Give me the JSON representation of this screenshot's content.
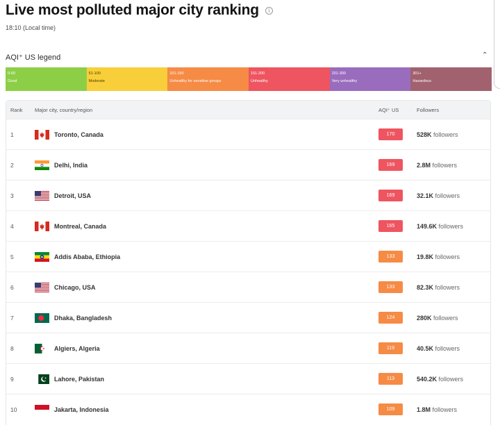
{
  "header": {
    "title": "Live most polluted major city ranking",
    "local_time": "18:10 (Local time)"
  },
  "legend": {
    "title": "AQI⁺ US legend",
    "segments": [
      {
        "range": "0-50",
        "label": "Good",
        "color": "#8ccf47"
      },
      {
        "range": "51-100",
        "label": "Moderate",
        "color": "#f8cf3a"
      },
      {
        "range": "101-150",
        "label": "Unhealthy for sensitive groups",
        "color": "#f58b45"
      },
      {
        "range": "151-200",
        "label": "Unhealthy",
        "color": "#ee5560"
      },
      {
        "range": "201-300",
        "label": "Very unhealthy",
        "color": "#9a6cbd"
      },
      {
        "range": "301+",
        "label": "Hazardous",
        "color": "#a1616e"
      }
    ]
  },
  "table": {
    "headers": {
      "rank": "Rank",
      "city": "Major city, country/region",
      "aqi": "AQI⁺ US",
      "followers": "Followers"
    },
    "rows": [
      {
        "rank": "1",
        "city": "Toronto, Canada",
        "flag": "canada-flag-icon",
        "aqi": "170",
        "aqi_color": "#ee5560",
        "followers_count": "528K",
        "followers_suffix": " followers"
      },
      {
        "rank": "2",
        "city": "Delhi, India",
        "flag": "india-flag-icon",
        "aqi": "169",
        "aqi_color": "#ee5560",
        "followers_count": "2.8M",
        "followers_suffix": " followers"
      },
      {
        "rank": "3",
        "city": "Detroit, USA",
        "flag": "usa-flag-icon",
        "aqi": "169",
        "aqi_color": "#ee5560",
        "followers_count": "32.1K",
        "followers_suffix": " followers"
      },
      {
        "rank": "4",
        "city": "Montreal, Canada",
        "flag": "canada-flag-icon",
        "aqi": "165",
        "aqi_color": "#ee5560",
        "followers_count": "149.6K",
        "followers_suffix": " followers"
      },
      {
        "rank": "5",
        "city": "Addis Ababa, Ethiopia",
        "flag": "ethiopia-flag-icon",
        "aqi": "133",
        "aqi_color": "#f58b45",
        "followers_count": "19.8K",
        "followers_suffix": " followers"
      },
      {
        "rank": "6",
        "city": "Chicago, USA",
        "flag": "usa-flag-icon",
        "aqi": "133",
        "aqi_color": "#f58b45",
        "followers_count": "82.3K",
        "followers_suffix": " followers"
      },
      {
        "rank": "7",
        "city": "Dhaka, Bangladesh",
        "flag": "bangladesh-flag-icon",
        "aqi": "124",
        "aqi_color": "#f58b45",
        "followers_count": "280K",
        "followers_suffix": " followers"
      },
      {
        "rank": "8",
        "city": "Algiers, Algeria",
        "flag": "algeria-flag-icon",
        "aqi": "119",
        "aqi_color": "#f58b45",
        "followers_count": "40.5K",
        "followers_suffix": " followers"
      },
      {
        "rank": "9",
        "city": "Lahore, Pakistan",
        "flag": "pakistan-flag-icon",
        "aqi": "113",
        "aqi_color": "#f58b45",
        "followers_count": "540.2K",
        "followers_suffix": " followers"
      },
      {
        "rank": "10",
        "city": "Jakarta, Indonesia",
        "flag": "indonesia-flag-icon",
        "aqi": "109",
        "aqi_color": "#f58b45",
        "followers_count": "1.8M",
        "followers_suffix": " followers"
      }
    ]
  }
}
